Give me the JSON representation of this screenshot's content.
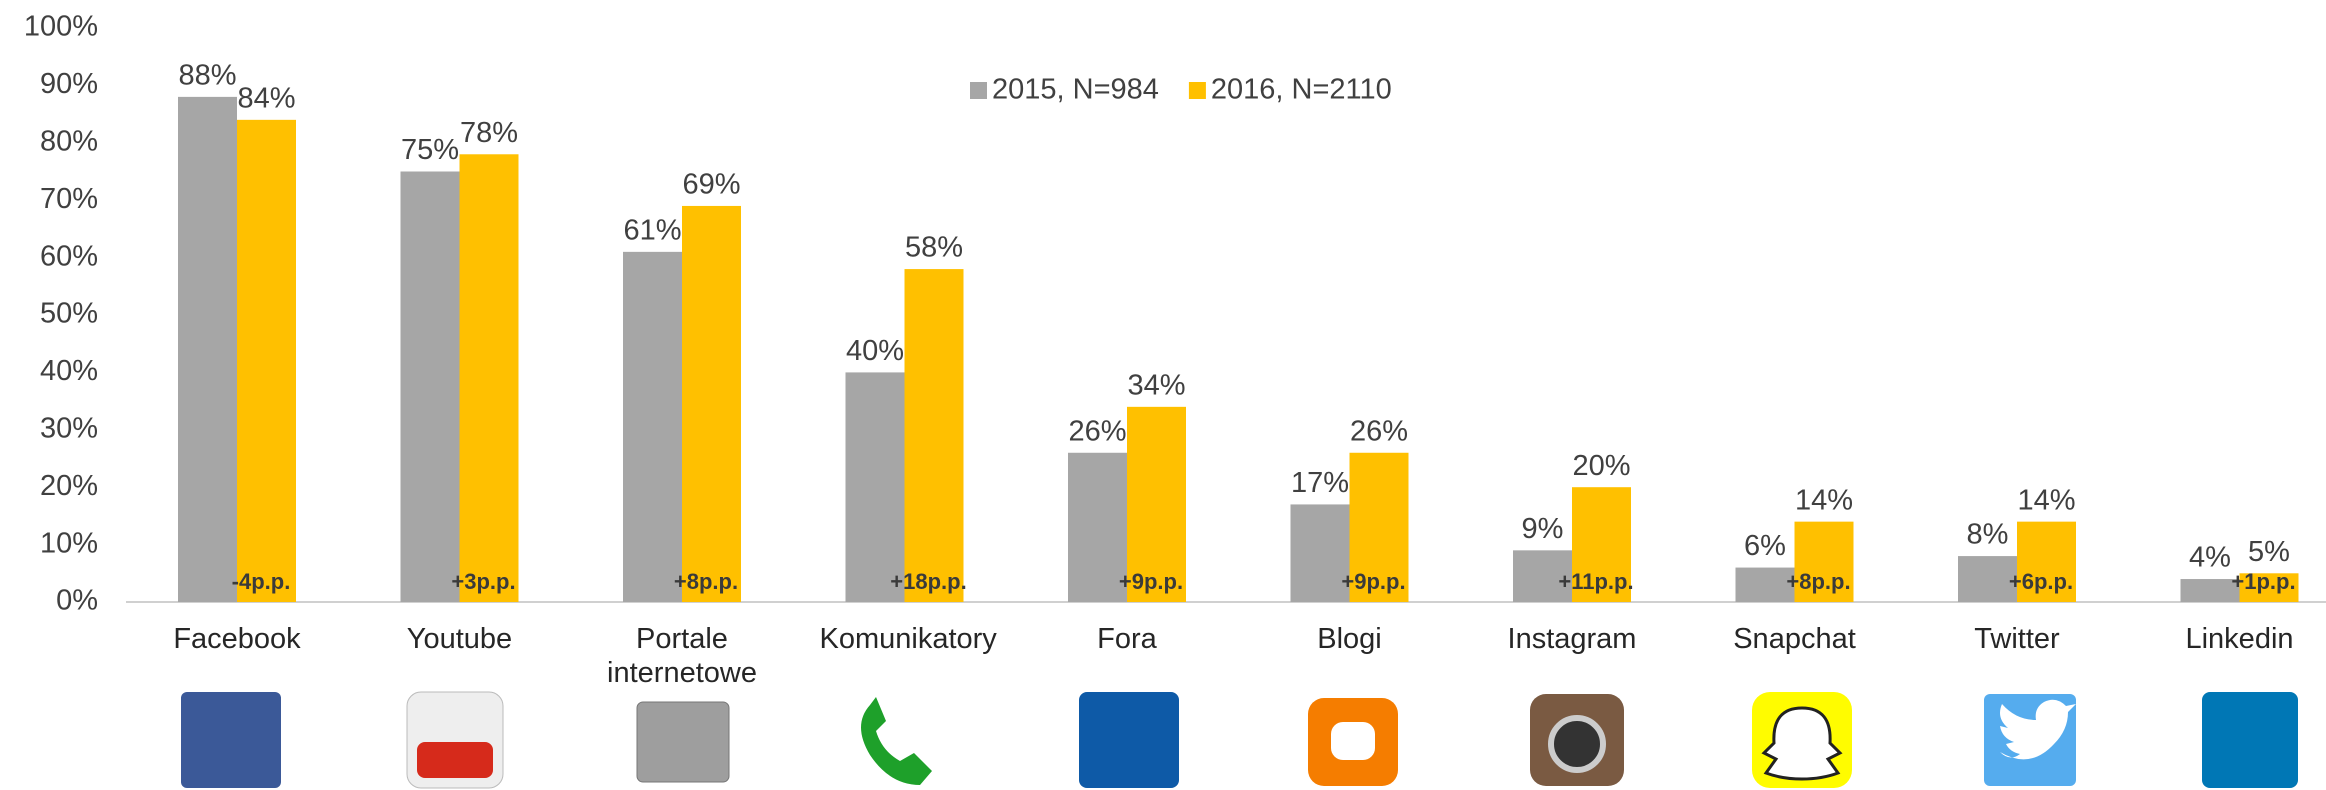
{
  "chart_data": {
    "type": "bar",
    "categories": [
      "Facebook",
      "Youtube",
      "Portale internetowe",
      "Komunikatory",
      "Fora",
      "Blogi",
      "Instagram",
      "Snapchat",
      "Twitter",
      "Linkedin"
    ],
    "series": [
      {
        "name": "2015, N=984",
        "color": "#a6a6a6",
        "values": [
          88,
          75,
          61,
          40,
          26,
          17,
          9,
          6,
          8,
          4
        ],
        "value_labels": [
          "88%",
          "75%",
          "61%",
          "40%",
          "26%",
          "17%",
          "9%",
          "6%",
          "8%",
          "4%"
        ]
      },
      {
        "name": "2016, N=2110",
        "color": "#ffc000",
        "values": [
          84,
          78,
          69,
          58,
          34,
          26,
          20,
          14,
          14,
          5
        ],
        "value_labels": [
          "84%",
          "78%",
          "69%",
          "58%",
          "34%",
          "26%",
          "20%",
          "14%",
          "14%",
          "5%"
        ]
      }
    ],
    "differences": [
      "-4p.p.",
      "+3p.p.",
      "+8p.p.",
      "+18p.p.",
      "+9p.p.",
      "+9p.p.",
      "+11p.p.",
      "+8p.p.",
      "+6p.p.",
      "+1p.p."
    ],
    "ylim": [
      0,
      100
    ],
    "yticks": [
      {
        "value": 0,
        "label": "0%"
      },
      {
        "value": 10,
        "label": "10%"
      },
      {
        "value": 20,
        "label": "20%"
      },
      {
        "value": 30,
        "label": "30%"
      },
      {
        "value": 40,
        "label": "40%"
      },
      {
        "value": 50,
        "label": "50%"
      },
      {
        "value": 60,
        "label": "60%"
      },
      {
        "value": 70,
        "label": "70%"
      },
      {
        "value": 80,
        "label": "80%"
      },
      {
        "value": 90,
        "label": "90%"
      },
      {
        "value": 100,
        "label": "100%"
      }
    ],
    "grid": false,
    "legend": "top"
  }
}
